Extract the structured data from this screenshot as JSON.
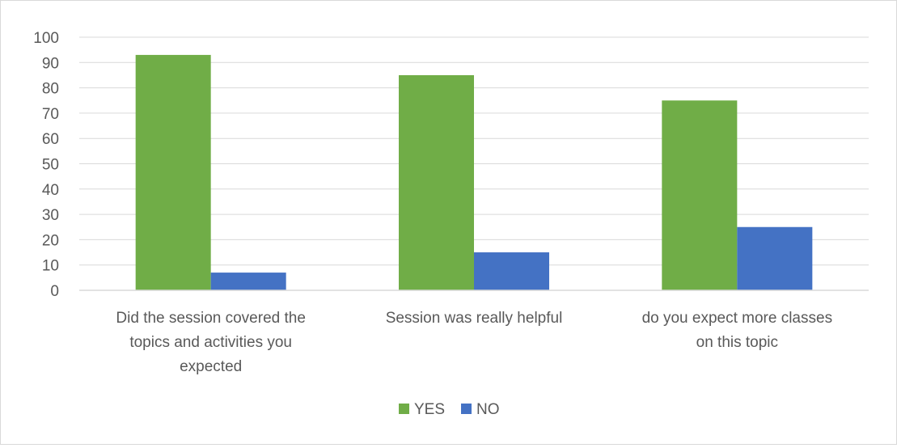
{
  "chart_data": {
    "type": "bar",
    "title": "",
    "xlabel": "",
    "ylabel": "",
    "ylim": [
      0,
      100
    ],
    "yticks": [
      0,
      10,
      20,
      30,
      40,
      50,
      60,
      70,
      80,
      90,
      100
    ],
    "grid": true,
    "legend_position": "bottom",
    "categories": [
      [
        "Did the session covered the",
        "topics and activities you",
        "expected"
      ],
      [
        "Session was really helpful"
      ],
      [
        "do you expect more classes",
        "on this topic"
      ]
    ],
    "series": [
      {
        "name": "YES",
        "color": "#70ad47",
        "values": [
          93,
          85,
          75
        ]
      },
      {
        "name": "NO",
        "color": "#4472c4",
        "values": [
          7,
          15,
          25
        ]
      }
    ]
  }
}
